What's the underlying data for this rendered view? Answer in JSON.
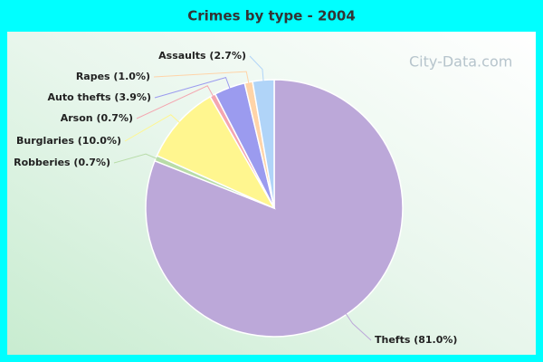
{
  "chart_data": {
    "type": "pie",
    "title": "Crimes by type - 2004",
    "watermark": "City-Data.com",
    "values": [
      81.0,
      0.7,
      10.0,
      0.7,
      3.9,
      1.0,
      2.7
    ],
    "value_labels": [
      "Thefts (81.0%)",
      "Robberies (0.7%)",
      "Burglaries (10.0%)",
      "Arson (0.7%)",
      "Auto thefts (3.9%)",
      "Rapes (1.0%)",
      "Assaults (2.7%)"
    ],
    "colors": [
      "#bca8d9",
      "#b8dca8",
      "#fff68f",
      "#f4a6b0",
      "#9b9bef",
      "#ffd4a8",
      "#b0d4f8"
    ]
  }
}
